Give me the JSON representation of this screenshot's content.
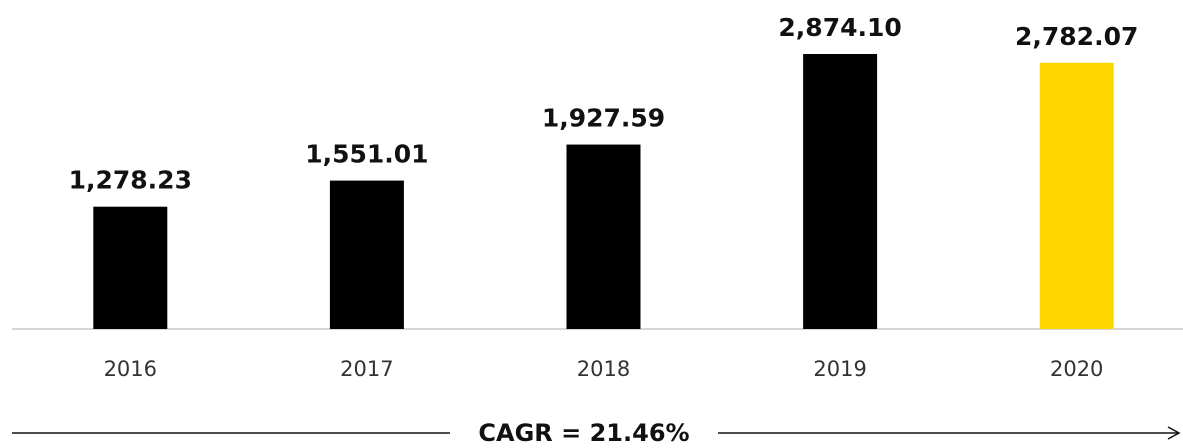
{
  "chart_data": {
    "type": "bar",
    "categories": [
      "2016",
      "2017",
      "2018",
      "2019",
      "2020"
    ],
    "values": [
      1278.23,
      1551.01,
      1927.59,
      2874.1,
      2782.07
    ],
    "value_labels": [
      "1,278.23",
      "1,551.01",
      "1,927.59",
      "2,874.10",
      "2,782.07"
    ],
    "colors": [
      "#000000",
      "#000000",
      "#000000",
      "#000000",
      "#ffd700"
    ],
    "annotation": "CAGR = 21.46%"
  }
}
